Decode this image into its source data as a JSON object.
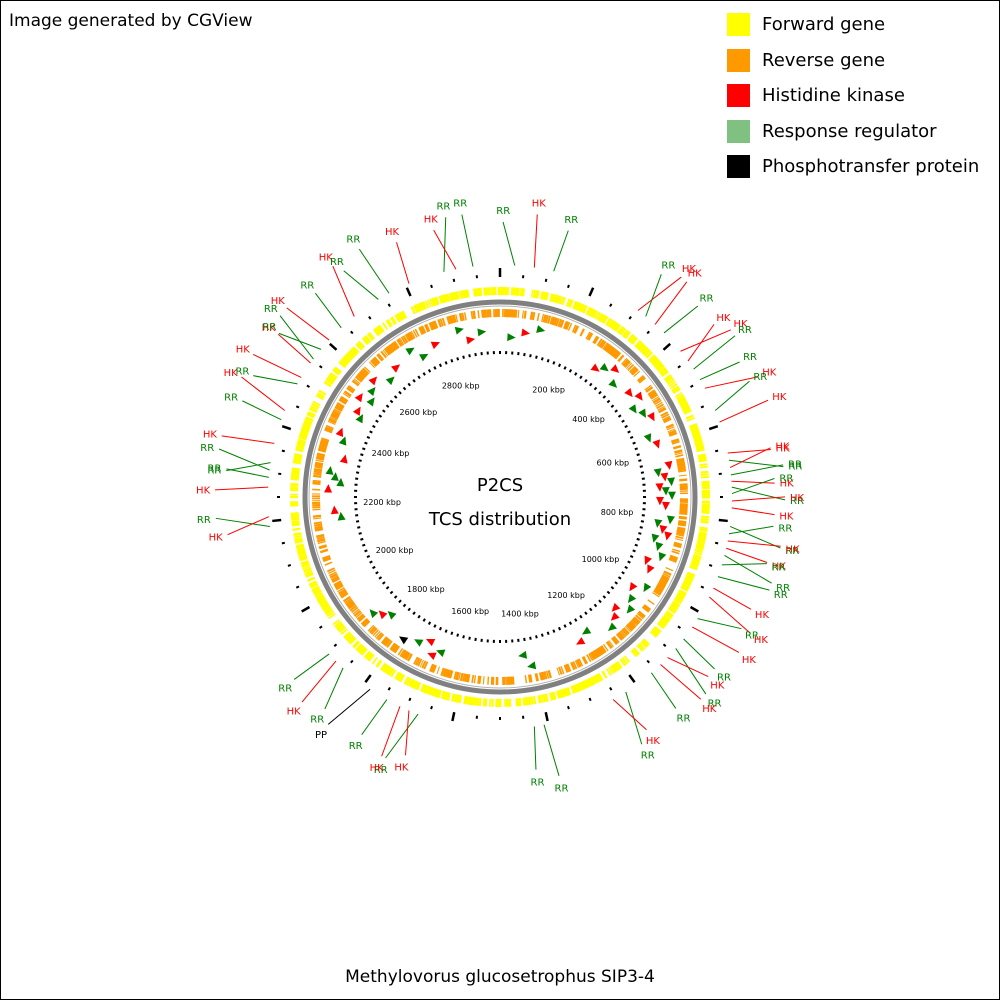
{
  "credit": "Image generated by CGView",
  "organism": "Methylovorus glucosetrophus SIP3-4",
  "center": {
    "line1": "P2CS",
    "line2": "TCS distribution"
  },
  "colors": {
    "forward": "#ffff00",
    "reverse": "#ff9900",
    "hk": "#ff0000",
    "rr": "#008000",
    "rr_legend": "#80c080",
    "pp": "#000000",
    "backbone": "#808080"
  },
  "legend": [
    {
      "label": "Forward gene",
      "color": "#ffff00"
    },
    {
      "label": "Reverse gene",
      "color": "#ff9900"
    },
    {
      "label": "Histidine kinase",
      "color": "#ff0000"
    },
    {
      "label": "Response regulator",
      "color": "#80c080"
    },
    {
      "label": "Phosphotransfer protein",
      "color": "#000000"
    }
  ],
  "chart_data": {
    "type": "circular-genome-map",
    "genome_length_kbp": 2960,
    "ruler_labels": [
      {
        "kbp": 200,
        "label": "200 kbp"
      },
      {
        "kbp": 400,
        "label": "400 kbp"
      },
      {
        "kbp": 600,
        "label": "600 kbp"
      },
      {
        "kbp": 800,
        "label": "800 kbp"
      },
      {
        "kbp": 1000,
        "label": "1000 kbp"
      },
      {
        "kbp": 1200,
        "label": "1200 kbp"
      },
      {
        "kbp": 1400,
        "label": "1400 kbp"
      },
      {
        "kbp": 1600,
        "label": "1600 kbp"
      },
      {
        "kbp": 1800,
        "label": "1800 kbp"
      },
      {
        "kbp": 2000,
        "label": "2000 kbp"
      },
      {
        "kbp": 2200,
        "label": "2200 kbp"
      },
      {
        "kbp": 2400,
        "label": "2400 kbp"
      },
      {
        "kbp": 2600,
        "label": "2600 kbp"
      },
      {
        "kbp": 2800,
        "label": "2800 kbp"
      }
    ],
    "features": [
      {
        "kbp": 30,
        "type": "RR"
      },
      {
        "kbp": 70,
        "type": "HK"
      },
      {
        "kbp": 110,
        "type": "RR"
      },
      {
        "kbp": 300,
        "type": "HK"
      },
      {
        "kbp": 320,
        "type": "RR"
      },
      {
        "kbp": 345,
        "type": "HK"
      },
      {
        "kbp": 370,
        "type": "RR"
      },
      {
        "kbp": 420,
        "type": "HK"
      },
      {
        "kbp": 445,
        "type": "HK"
      },
      {
        "kbp": 465,
        "type": "RR"
      },
      {
        "kbp": 490,
        "type": "RR"
      },
      {
        "kbp": 510,
        "type": "HK"
      },
      {
        "kbp": 560,
        "type": "RR"
      },
      {
        "kbp": 585,
        "type": "HK"
      },
      {
        "kbp": 650,
        "type": "HK"
      },
      {
        "kbp": 665,
        "type": "RR"
      },
      {
        "kbp": 680,
        "type": "HK"
      },
      {
        "kbp": 695,
        "type": "RR"
      },
      {
        "kbp": 708,
        "type": "HK"
      },
      {
        "kbp": 720,
        "type": "RR"
      },
      {
        "kbp": 733,
        "type": "RR"
      },
      {
        "kbp": 748,
        "type": "HK"
      },
      {
        "kbp": 762,
        "type": "HK"
      },
      {
        "kbp": 800,
        "type": "RR"
      },
      {
        "kbp": 815,
        "type": "RR"
      },
      {
        "kbp": 830,
        "type": "HK"
      },
      {
        "kbp": 845,
        "type": "HK"
      },
      {
        "kbp": 860,
        "type": "RR"
      },
      {
        "kbp": 880,
        "type": "RR"
      },
      {
        "kbp": 905,
        "type": "RR"
      },
      {
        "kbp": 930,
        "type": "HK"
      },
      {
        "kbp": 950,
        "type": "HK"
      },
      {
        "kbp": 1000,
        "type": "RR"
      },
      {
        "kbp": 1020,
        "type": "HK"
      },
      {
        "kbp": 1050,
        "type": "RR"
      },
      {
        "kbp": 1075,
        "type": "RR"
      },
      {
        "kbp": 1100,
        "type": "HK"
      },
      {
        "kbp": 1120,
        "type": "HK"
      },
      {
        "kbp": 1145,
        "type": "RR"
      },
      {
        "kbp": 1210,
        "type": "RR"
      },
      {
        "kbp": 1240,
        "type": "HK"
      },
      {
        "kbp": 1390,
        "type": "RR"
      },
      {
        "kbp": 1410,
        "type": "RR"
      },
      {
        "kbp": 1650,
        "type": "RR"
      },
      {
        "kbp": 1670,
        "type": "HK"
      },
      {
        "kbp": 1690,
        "type": "HK"
      },
      {
        "kbp": 1720,
        "type": "RR"
      },
      {
        "kbp": 1760,
        "type": "PP"
      },
      {
        "kbp": 1830,
        "type": "RR"
      },
      {
        "kbp": 1850,
        "type": "HK"
      },
      {
        "kbp": 1870,
        "type": "RR"
      },
      {
        "kbp": 2160,
        "type": "RR"
      },
      {
        "kbp": 2180,
        "type": "HK"
      },
      {
        "kbp": 2240,
        "type": "HK"
      },
      {
        "kbp": 2260,
        "type": "RR"
      },
      {
        "kbp": 2275,
        "type": "RR"
      },
      {
        "kbp": 2290,
        "type": "RR"
      },
      {
        "kbp": 2330,
        "type": "HK"
      },
      {
        "kbp": 2380,
        "type": "RR"
      },
      {
        "kbp": 2400,
        "type": "HK"
      },
      {
        "kbp": 2460,
        "type": "RR"
      },
      {
        "kbp": 2475,
        "type": "HK"
      },
      {
        "kbp": 2510,
        "type": "HK"
      },
      {
        "kbp": 2520,
        "type": "RR"
      },
      {
        "kbp": 2545,
        "type": "RR"
      },
      {
        "kbp": 2570,
        "type": "HK"
      },
      {
        "kbp": 2605,
        "type": "RR"
      },
      {
        "kbp": 2640,
        "type": "HK"
      },
      {
        "kbp": 2700,
        "type": "RR"
      },
      {
        "kbp": 2725,
        "type": "RR"
      },
      {
        "kbp": 2770,
        "type": "HK"
      },
      {
        "kbp": 2845,
        "type": "RR"
      },
      {
        "kbp": 2870,
        "type": "HK"
      },
      {
        "kbp": 2905,
        "type": "RR"
      }
    ]
  }
}
